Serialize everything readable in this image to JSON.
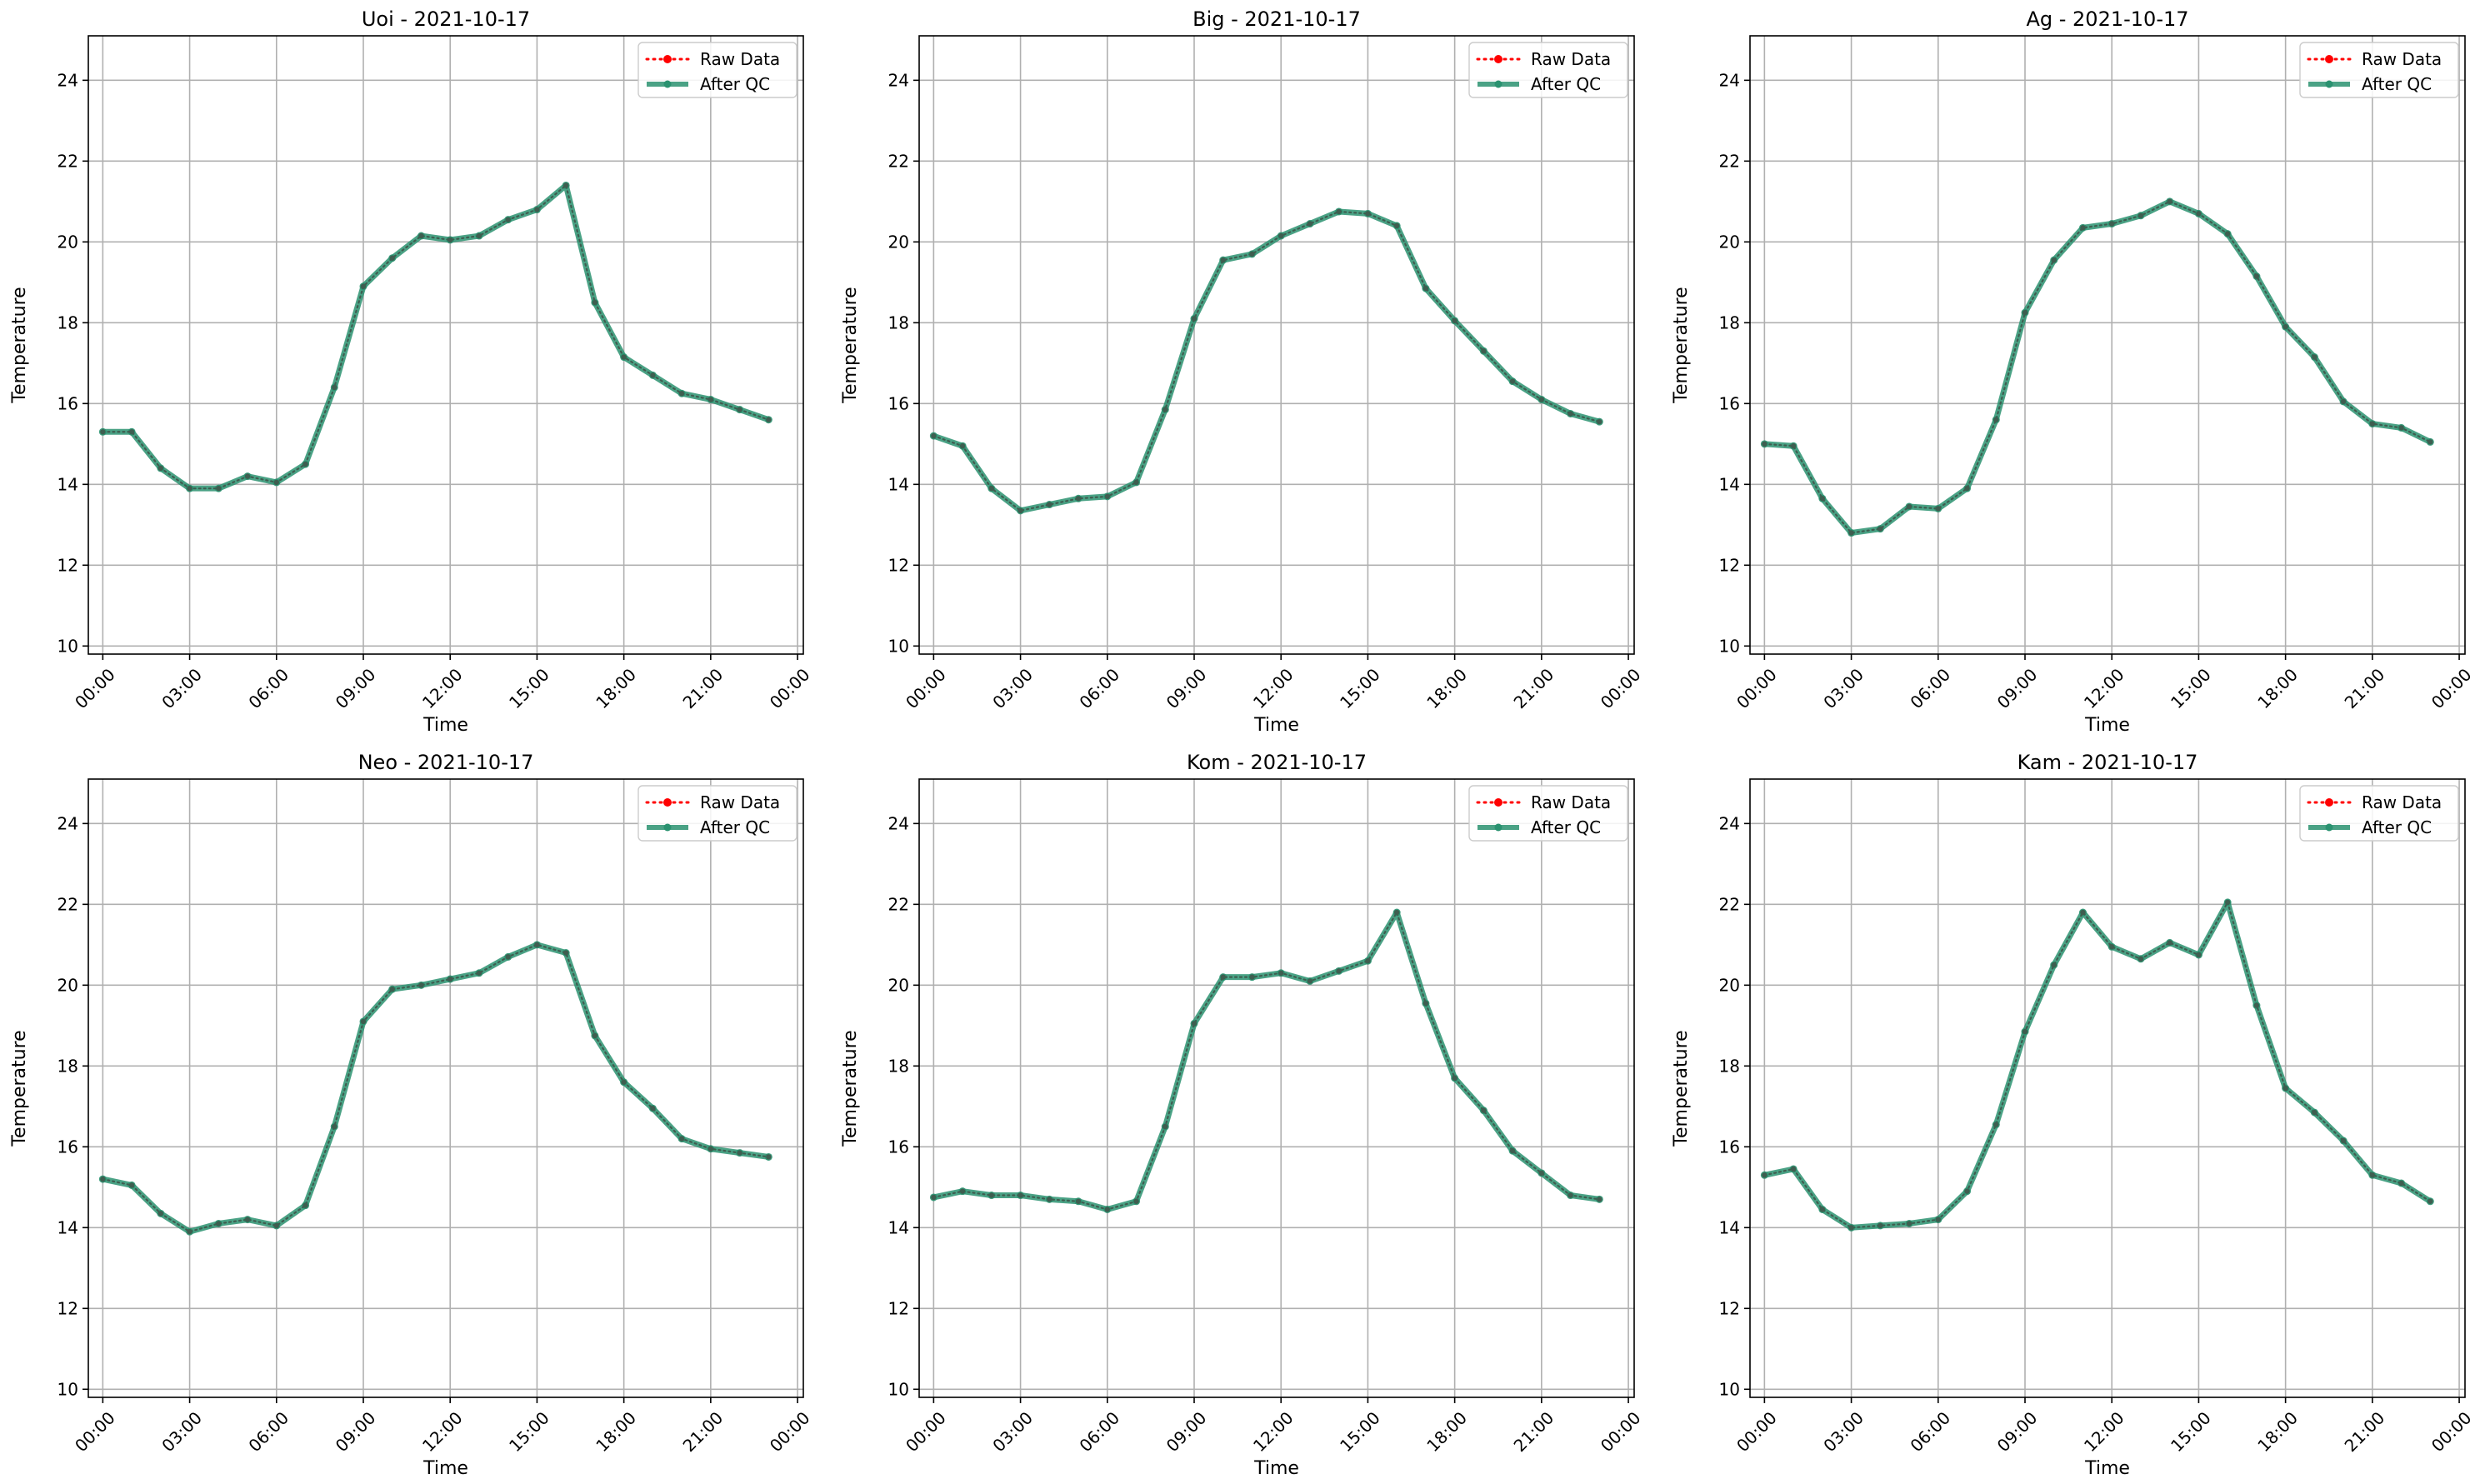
{
  "chart_data": [
    {
      "type": "line",
      "title": "Uoi - 2021-10-17",
      "xlabel": "Time",
      "ylabel": "Temperature",
      "xtick_labels": [
        "00:00",
        "03:00",
        "06:00",
        "09:00",
        "12:00",
        "15:00",
        "18:00",
        "21:00",
        "00:00"
      ],
      "x_hours": [
        0,
        1,
        2,
        3,
        4,
        5,
        6,
        7,
        8,
        9,
        10,
        11,
        12,
        13,
        14,
        15,
        16,
        17,
        18,
        19,
        20,
        21,
        22,
        23
      ],
      "ylim": [
        9.8,
        25.1
      ],
      "yticks": [
        10,
        12,
        14,
        16,
        18,
        20,
        22,
        24
      ],
      "xlim": [
        -0.5,
        24.2
      ],
      "grid": true,
      "legend_position": "top-right",
      "series": [
        {
          "name": "Raw Data",
          "color": "#ff0000",
          "style": "dotted",
          "values": [
            15.3,
            15.3,
            14.4,
            13.9,
            13.9,
            14.2,
            14.05,
            14.5,
            16.4,
            18.9,
            19.6,
            20.15,
            20.05,
            20.15,
            20.55,
            20.8,
            21.4,
            18.5,
            17.15,
            16.7,
            16.25,
            16.1,
            15.85,
            15.6
          ]
        },
        {
          "name": "After QC",
          "color": "#2a9270",
          "style": "solid",
          "values": [
            15.3,
            15.3,
            14.4,
            13.9,
            13.9,
            14.2,
            14.05,
            14.5,
            16.4,
            18.9,
            19.6,
            20.15,
            20.05,
            20.15,
            20.55,
            20.8,
            21.4,
            18.5,
            17.15,
            16.7,
            16.25,
            16.1,
            15.85,
            15.6
          ]
        }
      ]
    },
    {
      "type": "line",
      "title": "Big - 2021-10-17",
      "xlabel": "Time",
      "ylabel": "Temperature",
      "xtick_labels": [
        "00:00",
        "03:00",
        "06:00",
        "09:00",
        "12:00",
        "15:00",
        "18:00",
        "21:00",
        "00:00"
      ],
      "x_hours": [
        0,
        1,
        2,
        3,
        4,
        5,
        6,
        7,
        8,
        9,
        10,
        11,
        12,
        13,
        14,
        15,
        16,
        17,
        18,
        19,
        20,
        21,
        22,
        23
      ],
      "ylim": [
        9.8,
        25.1
      ],
      "yticks": [
        10,
        12,
        14,
        16,
        18,
        20,
        22,
        24
      ],
      "xlim": [
        -0.5,
        24.2
      ],
      "grid": true,
      "legend_position": "top-right",
      "series": [
        {
          "name": "Raw Data",
          "color": "#ff0000",
          "style": "dotted",
          "values": [
            15.2,
            14.95,
            13.9,
            13.35,
            13.5,
            13.65,
            13.7,
            14.05,
            15.85,
            18.1,
            19.55,
            19.7,
            20.15,
            20.45,
            20.75,
            20.7,
            20.4,
            18.85,
            18.05,
            17.3,
            16.55,
            16.1,
            15.75,
            15.55
          ]
        },
        {
          "name": "After QC",
          "color": "#2a9270",
          "style": "solid",
          "values": [
            15.2,
            14.95,
            13.9,
            13.35,
            13.5,
            13.65,
            13.7,
            14.05,
            15.85,
            18.1,
            19.55,
            19.7,
            20.15,
            20.45,
            20.75,
            20.7,
            20.4,
            18.85,
            18.05,
            17.3,
            16.55,
            16.1,
            15.75,
            15.55
          ]
        }
      ]
    },
    {
      "type": "line",
      "title": "Ag - 2021-10-17",
      "xlabel": "Time",
      "ylabel": "Temperature",
      "xtick_labels": [
        "00:00",
        "03:00",
        "06:00",
        "09:00",
        "12:00",
        "15:00",
        "18:00",
        "21:00",
        "00:00"
      ],
      "x_hours": [
        0,
        1,
        2,
        3,
        4,
        5,
        6,
        7,
        8,
        9,
        10,
        11,
        12,
        13,
        14,
        15,
        16,
        17,
        18,
        19,
        20,
        21,
        22,
        23
      ],
      "ylim": [
        9.8,
        25.1
      ],
      "yticks": [
        10,
        12,
        14,
        16,
        18,
        20,
        22,
        24
      ],
      "xlim": [
        -0.5,
        24.2
      ],
      "grid": true,
      "legend_position": "top-right",
      "series": [
        {
          "name": "Raw Data",
          "color": "#ff0000",
          "style": "dotted",
          "values": [
            15.0,
            14.95,
            13.65,
            12.8,
            12.9,
            13.45,
            13.4,
            13.9,
            15.6,
            18.25,
            19.55,
            20.35,
            20.45,
            20.65,
            21.0,
            20.7,
            20.2,
            19.15,
            17.9,
            17.15,
            16.05,
            15.5,
            15.4,
            15.05
          ]
        },
        {
          "name": "After QC",
          "color": "#2a9270",
          "style": "solid",
          "values": [
            15.0,
            14.95,
            13.65,
            12.8,
            12.9,
            13.45,
            13.4,
            13.9,
            15.6,
            18.25,
            19.55,
            20.35,
            20.45,
            20.65,
            21.0,
            20.7,
            20.2,
            19.15,
            17.9,
            17.15,
            16.05,
            15.5,
            15.4,
            15.05
          ]
        }
      ]
    },
    {
      "type": "line",
      "title": "Neo - 2021-10-17",
      "xlabel": "Time",
      "ylabel": "Temperature",
      "xtick_labels": [
        "00:00",
        "03:00",
        "06:00",
        "09:00",
        "12:00",
        "15:00",
        "18:00",
        "21:00",
        "00:00"
      ],
      "x_hours": [
        0,
        1,
        2,
        3,
        4,
        5,
        6,
        7,
        8,
        9,
        10,
        11,
        12,
        13,
        14,
        15,
        16,
        17,
        18,
        19,
        20,
        21,
        22,
        23
      ],
      "ylim": [
        9.8,
        25.1
      ],
      "yticks": [
        10,
        12,
        14,
        16,
        18,
        20,
        22,
        24
      ],
      "xlim": [
        -0.5,
        24.2
      ],
      "grid": true,
      "legend_position": "top-right",
      "series": [
        {
          "name": "Raw Data",
          "color": "#ff0000",
          "style": "dotted",
          "values": [
            15.2,
            15.05,
            14.35,
            13.9,
            14.1,
            14.2,
            14.05,
            14.55,
            16.5,
            19.1,
            19.9,
            20.0,
            20.15,
            20.3,
            20.7,
            21.0,
            20.8,
            18.75,
            17.6,
            16.95,
            16.2,
            15.95,
            15.85,
            15.75
          ]
        },
        {
          "name": "After QC",
          "color": "#2a9270",
          "style": "solid",
          "values": [
            15.2,
            15.05,
            14.35,
            13.9,
            14.1,
            14.2,
            14.05,
            14.55,
            16.5,
            19.1,
            19.9,
            20.0,
            20.15,
            20.3,
            20.7,
            21.0,
            20.8,
            18.75,
            17.6,
            16.95,
            16.2,
            15.95,
            15.85,
            15.75
          ]
        }
      ]
    },
    {
      "type": "line",
      "title": "Kom - 2021-10-17",
      "xlabel": "Time",
      "ylabel": "Temperature",
      "xtick_labels": [
        "00:00",
        "03:00",
        "06:00",
        "09:00",
        "12:00",
        "15:00",
        "18:00",
        "21:00",
        "00:00"
      ],
      "x_hours": [
        0,
        1,
        2,
        3,
        4,
        5,
        6,
        7,
        8,
        9,
        10,
        11,
        12,
        13,
        14,
        15,
        16,
        17,
        18,
        19,
        20,
        21,
        22,
        23
      ],
      "ylim": [
        9.8,
        25.1
      ],
      "yticks": [
        10,
        12,
        14,
        16,
        18,
        20,
        22,
        24
      ],
      "xlim": [
        -0.5,
        24.2
      ],
      "grid": true,
      "legend_position": "top-right",
      "series": [
        {
          "name": "Raw Data",
          "color": "#ff0000",
          "style": "dotted",
          "values": [
            14.75,
            14.9,
            14.8,
            14.8,
            14.7,
            14.65,
            14.45,
            14.65,
            16.5,
            19.05,
            20.2,
            20.2,
            20.3,
            20.1,
            20.35,
            20.6,
            21.8,
            19.55,
            17.7,
            16.9,
            15.9,
            15.35,
            14.8,
            14.7
          ]
        },
        {
          "name": "After QC",
          "color": "#2a9270",
          "style": "solid",
          "values": [
            14.75,
            14.9,
            14.8,
            14.8,
            14.7,
            14.65,
            14.45,
            14.65,
            16.5,
            19.05,
            20.2,
            20.2,
            20.3,
            20.1,
            20.35,
            20.6,
            21.8,
            19.55,
            17.7,
            16.9,
            15.9,
            15.35,
            14.8,
            14.7
          ]
        }
      ]
    },
    {
      "type": "line",
      "title": "Kam - 2021-10-17",
      "xlabel": "Time",
      "ylabel": "Temperature",
      "xtick_labels": [
        "00:00",
        "03:00",
        "06:00",
        "09:00",
        "12:00",
        "15:00",
        "18:00",
        "21:00",
        "00:00"
      ],
      "x_hours": [
        0,
        1,
        2,
        3,
        4,
        5,
        6,
        7,
        8,
        9,
        10,
        11,
        12,
        13,
        14,
        15,
        16,
        17,
        18,
        19,
        20,
        21,
        22,
        23
      ],
      "ylim": [
        9.8,
        25.1
      ],
      "yticks": [
        10,
        12,
        14,
        16,
        18,
        20,
        22,
        24
      ],
      "xlim": [
        -0.5,
        24.2
      ],
      "grid": true,
      "legend_position": "top-right",
      "series": [
        {
          "name": "Raw Data",
          "color": "#ff0000",
          "style": "dotted",
          "values": [
            15.3,
            15.45,
            14.45,
            14.0,
            14.05,
            14.1,
            14.2,
            14.9,
            16.55,
            18.85,
            20.5,
            21.8,
            20.95,
            20.65,
            21.05,
            20.75,
            22.05,
            19.5,
            17.45,
            16.85,
            16.15,
            15.3,
            15.1,
            14.65
          ]
        },
        {
          "name": "After QC",
          "color": "#2a9270",
          "style": "solid",
          "values": [
            15.3,
            15.45,
            14.45,
            14.0,
            14.05,
            14.1,
            14.2,
            14.9,
            16.55,
            18.85,
            20.5,
            21.8,
            20.95,
            20.65,
            21.05,
            20.75,
            22.05,
            19.5,
            17.45,
            16.85,
            16.15,
            15.3,
            15.1,
            14.65
          ]
        }
      ]
    }
  ]
}
